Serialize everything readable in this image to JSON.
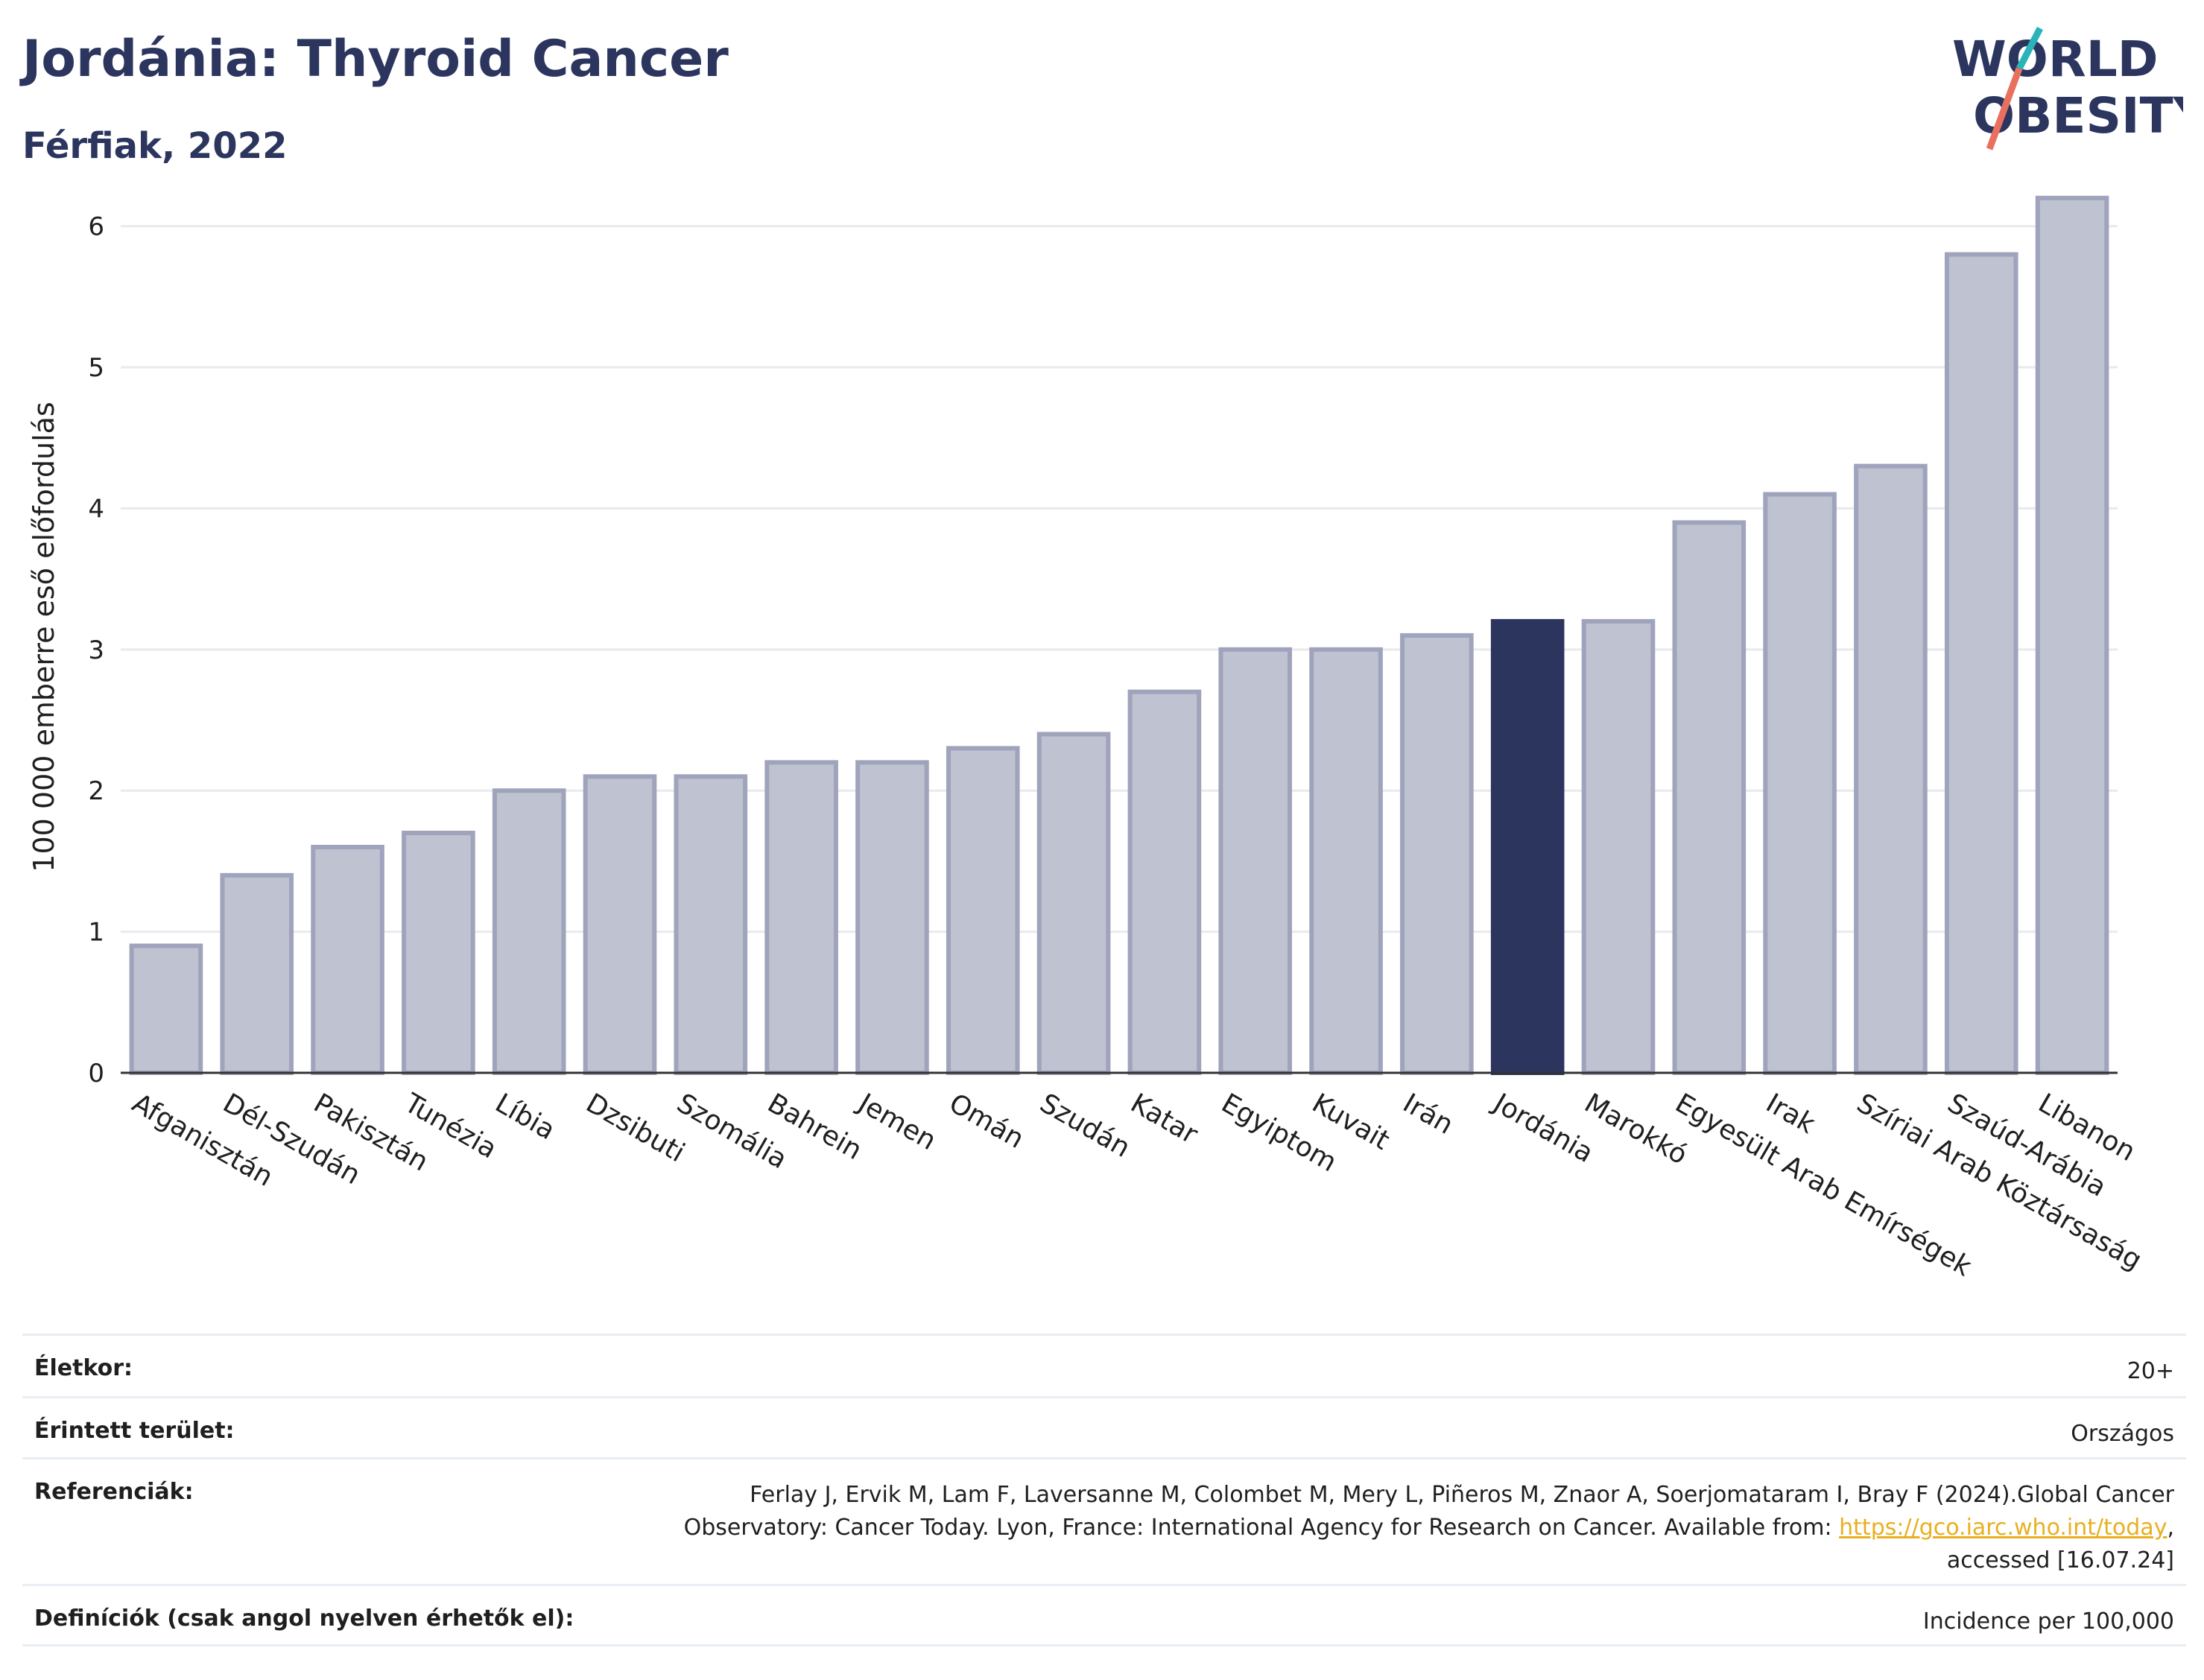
{
  "header": {
    "title": "Jordánia: Thyroid Cancer",
    "subtitle": "Férfiak, 2022"
  },
  "logo": {
    "line1": "WORLD",
    "line2": "OBESITY",
    "name": "world-obesity-logo"
  },
  "chart_data": {
    "type": "bar",
    "categories": [
      "Afganisztán",
      "Dél-Szudán",
      "Pakisztán",
      "Tunézia",
      "Líbia",
      "Dzsibuti",
      "Szomália",
      "Bahrein",
      "Jemen",
      "Omán",
      "Szudán",
      "Katar",
      "Egyiptom",
      "Kuvait",
      "Irán",
      "Jordánia",
      "Marokkó",
      "Egyesült Arab Emírségek",
      "Irak",
      "Szíriai Arab Köztársaság",
      "Szaúd-Arábia",
      "Libanon"
    ],
    "values": [
      0.9,
      1.4,
      1.6,
      1.7,
      2.0,
      2.1,
      2.1,
      2.2,
      2.2,
      2.3,
      2.4,
      2.7,
      3.0,
      3.0,
      3.1,
      3.2,
      3.2,
      3.9,
      4.1,
      4.3,
      5.8,
      6.2
    ],
    "highlight": "Jordánia",
    "ylabel": "100 000 emberre eső előfordulás",
    "ylim": [
      0,
      6.6
    ],
    "yticks": [
      0,
      1,
      2,
      3,
      4,
      5,
      6
    ],
    "grid": true,
    "colors": {
      "bar": "#bfc2d0",
      "bar_edge": "#9fa3bb",
      "highlight": "#2b355e",
      "grid": "#e9eaee",
      "axis": "#333333"
    }
  },
  "info": {
    "rows": [
      {
        "label": "Életkor:",
        "value": "20+"
      },
      {
        "label": "Érintett terület:",
        "value": "Országos"
      },
      {
        "label": "Referenciák:",
        "value_line1": "Ferlay J, Ervik M, Lam F, Laversanne M, Colombet M, Mery L, Piñeros M, Znaor A, Soerjomataram I, Bray F (2024).Global Cancer",
        "value_line2_pre": "Observatory: Cancer Today. Lyon, France: International Agency for Research on Cancer. Available from: ",
        "link": "https://gco.iarc.who.int/today",
        "value_line2_post": ",",
        "value_line3": "accessed [16.07.24]"
      },
      {
        "label": "Definíciók (csak angol nyelven érhetők el):",
        "value": "Incidence per 100,000"
      }
    ]
  }
}
